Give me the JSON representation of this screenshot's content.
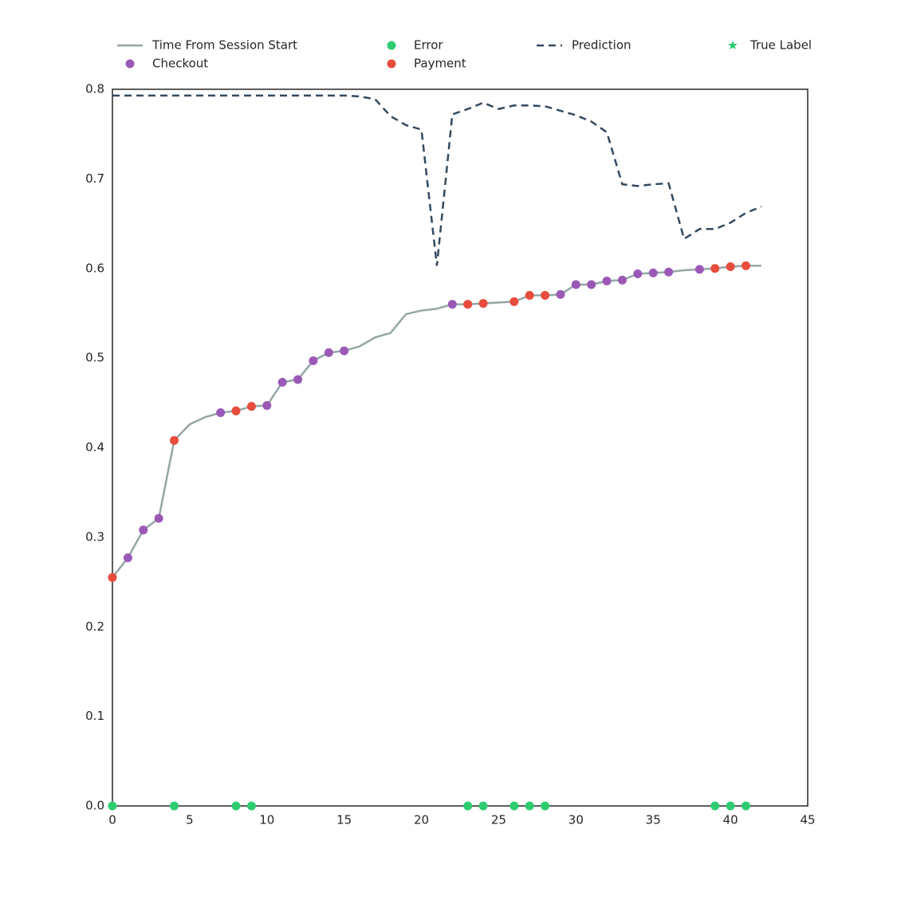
{
  "chart_data": {
    "type": "line",
    "xlim": [
      0,
      45
    ],
    "xticks": [
      0,
      5,
      10,
      15,
      20,
      25,
      30,
      35,
      40,
      45
    ],
    "ylim": [
      0,
      0.8
    ],
    "yticks": [
      {
        "value": 0,
        "label": "0.0"
      },
      0.1,
      0.2,
      0.3,
      0.4,
      0.5,
      0.6,
      0.7,
      0.8
    ],
    "series": [
      {
        "name": "Time From Session Start",
        "style": "line",
        "color": "#95a5a6",
        "x": [
          0,
          1,
          2,
          3,
          4,
          5,
          6,
          7,
          8,
          9,
          10,
          11,
          12,
          13,
          14,
          15,
          16,
          17,
          18,
          19,
          20,
          21,
          22,
          23,
          24,
          25,
          26,
          27,
          28,
          29,
          30,
          31,
          32,
          33,
          34,
          35,
          36,
          37,
          38,
          39,
          40,
          41,
          42
        ],
        "values": [
          0.255,
          0.277,
          0.308,
          0.321,
          0.408,
          0.426,
          0.434,
          0.439,
          0.441,
          0.446,
          0.447,
          0.473,
          0.476,
          0.497,
          0.506,
          0.508,
          0.513,
          0.523,
          0.528,
          0.549,
          0.553,
          0.555,
          0.56,
          0.56,
          0.561,
          0.562,
          0.563,
          0.57,
          0.57,
          0.571,
          0.582,
          0.582,
          0.586,
          0.587,
          0.594,
          0.595,
          0.596,
          0.598,
          0.599,
          0.6,
          0.602,
          0.603,
          0.603
        ]
      },
      {
        "name": "Checkout",
        "style": "scatter",
        "color": "#9b59b6",
        "x": [
          1,
          2,
          3,
          7,
          10,
          11,
          12,
          13,
          14,
          15,
          22,
          29,
          30,
          31,
          32,
          33,
          34,
          35,
          36,
          38
        ],
        "values": [
          0.277,
          0.308,
          0.321,
          0.439,
          0.447,
          0.473,
          0.476,
          0.497,
          0.506,
          0.508,
          0.56,
          0.571,
          0.582,
          0.582,
          0.586,
          0.587,
          0.594,
          0.595,
          0.596,
          0.599
        ]
      },
      {
        "name": "Error",
        "style": "scatter",
        "color": "#2ecc71",
        "x": [
          0,
          4,
          8,
          9,
          23,
          24,
          26,
          27,
          28,
          39,
          40,
          41
        ],
        "values": [
          0,
          0,
          0,
          0,
          0,
          0,
          0,
          0,
          0,
          0,
          0,
          0
        ]
      },
      {
        "name": "Payment",
        "style": "scatter",
        "color": "#e74c3c",
        "x": [
          0,
          4,
          8,
          9,
          23,
          24,
          26,
          27,
          28,
          39,
          40,
          41
        ],
        "values": [
          0.255,
          0.408,
          0.441,
          0.446,
          0.56,
          0.561,
          0.563,
          0.57,
          0.57,
          0.6,
          0.602,
          0.603
        ]
      },
      {
        "name": "Prediction",
        "style": "dashed",
        "color": "#34495e",
        "x": [
          0,
          1,
          2,
          3,
          4,
          5,
          6,
          7,
          8,
          9,
          10,
          11,
          12,
          13,
          14,
          15,
          16,
          17,
          18,
          19,
          20,
          21,
          22,
          23,
          24,
          25,
          26,
          27,
          28,
          29,
          30,
          31,
          32,
          33,
          34,
          35,
          36,
          37,
          38,
          39,
          40,
          41,
          42
        ],
        "values": [
          0.793,
          0.793,
          0.793,
          0.793,
          0.793,
          0.793,
          0.793,
          0.793,
          0.793,
          0.793,
          0.793,
          0.793,
          0.793,
          0.793,
          0.793,
          0.793,
          0.792,
          0.789,
          0.77,
          0.76,
          0.755,
          0.603,
          0.772,
          0.778,
          0.785,
          0.778,
          0.782,
          0.782,
          0.781,
          0.776,
          0.771,
          0.764,
          0.752,
          0.694,
          0.692,
          0.694,
          0.695,
          0.633,
          0.644,
          0.644,
          0.651,
          0.662,
          0.669
        ]
      },
      {
        "name": "True Label",
        "style": "star",
        "color": "#2ecc71",
        "x": [],
        "values": []
      }
    ]
  }
}
